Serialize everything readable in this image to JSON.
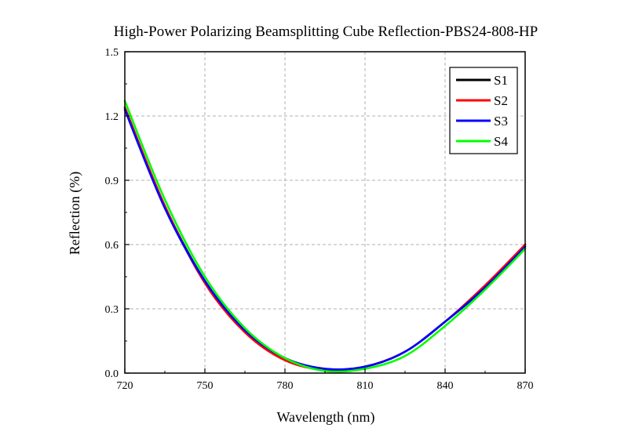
{
  "chart_data": {
    "type": "line",
    "title": "High-Power Polarizing Beamsplitting Cube Reflection-PBS24-808-HP",
    "xlabel": "Wavelength (nm)",
    "ylabel": "Reflection (%)",
    "xlim": [
      720,
      870
    ],
    "ylim": [
      0,
      1.5
    ],
    "x_ticks": [
      "720",
      "750",
      "780",
      "810",
      "840",
      "870"
    ],
    "y_ticks": [
      "0.0",
      "0.3",
      "0.6",
      "0.9",
      "1.2",
      "1.5"
    ],
    "grid": true,
    "legend_position": "top-right",
    "x": [
      720,
      735,
      750,
      765,
      780,
      795,
      810,
      825,
      840,
      855,
      870
    ],
    "series": [
      {
        "name": "S1",
        "color": "#000000",
        "values": [
          1.24,
          0.78,
          0.43,
          0.2,
          0.07,
          0.02,
          0.03,
          0.1,
          0.24,
          0.4,
          0.6
        ]
      },
      {
        "name": "S2",
        "color": "#ff0000",
        "values": [
          1.24,
          0.78,
          0.42,
          0.19,
          0.06,
          0.015,
          0.03,
          0.1,
          0.24,
          0.41,
          0.6
        ]
      },
      {
        "name": "S3",
        "color": "#0000ff",
        "values": [
          1.23,
          0.77,
          0.43,
          0.2,
          0.07,
          0.02,
          0.03,
          0.1,
          0.24,
          0.4,
          0.59
        ]
      },
      {
        "name": "S4",
        "color": "#00ff00",
        "values": [
          1.27,
          0.81,
          0.45,
          0.21,
          0.07,
          0.01,
          0.02,
          0.08,
          0.22,
          0.39,
          0.58
        ]
      }
    ]
  }
}
